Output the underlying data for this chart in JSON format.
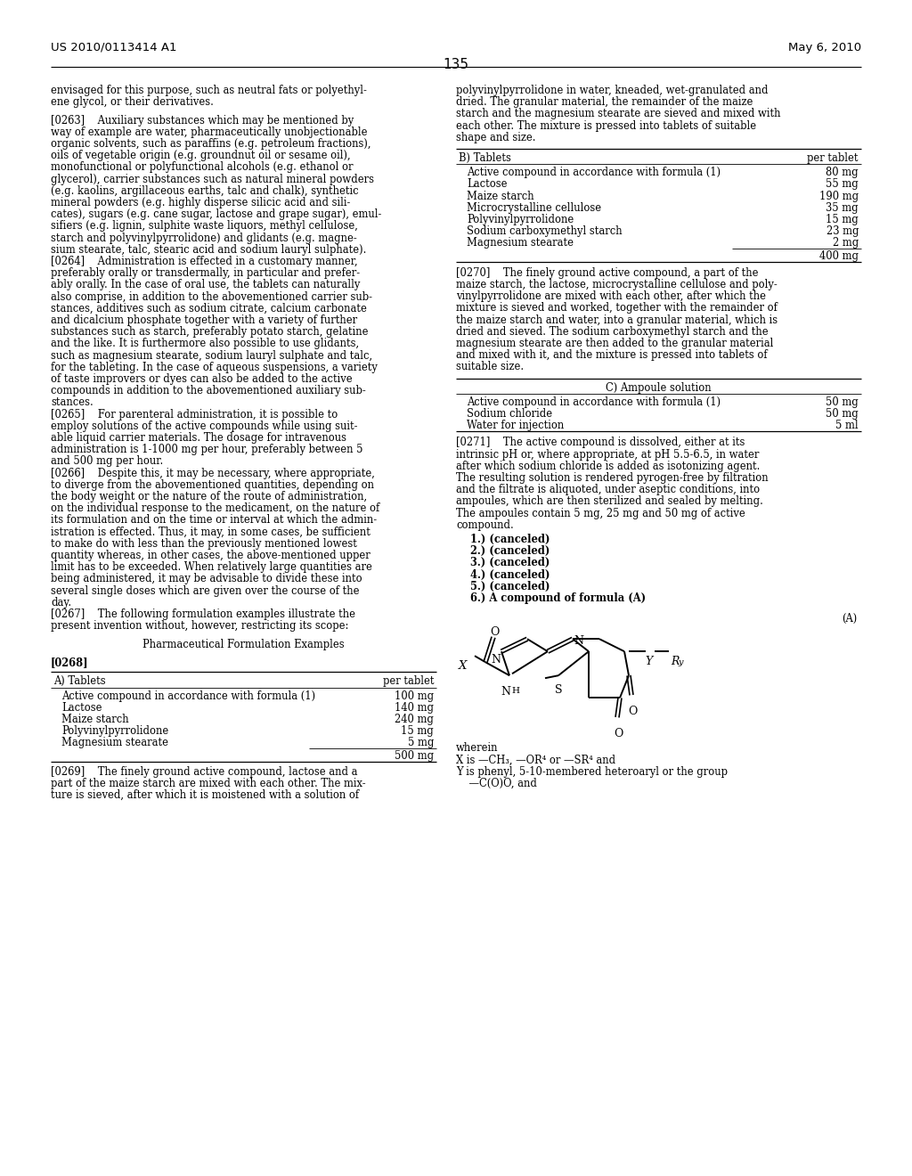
{
  "background_color": "#ffffff",
  "header_left": "US 2010/0113414 A1",
  "header_right": "May 6, 2010",
  "page_number": "135",
  "left_col_lines": [
    "envisaged for this purpose, such as neutral fats or polyethyl-",
    "ene glycol, or their derivatives.",
    "",
    "[0263]    Auxiliary substances which may be mentioned by",
    "way of example are water, pharmaceutically unobjectionable",
    "organic solvents, such as paraffins (e.g. petroleum fractions),",
    "oils of vegetable origin (e.g. groundnut oil or sesame oil),",
    "monofunctional or polyfunctional alcohols (e.g. ethanol or",
    "glycerol), carrier substances such as natural mineral powders",
    "(e.g. kaolins, argillaceous earths, talc and chalk), synthetic",
    "mineral powders (e.g. highly disperse silicic acid and sili-",
    "cates), sugars (e.g. cane sugar, lactose and grape sugar), emul-",
    "sifiers (e.g. lignin, sulphite waste liquors, methyl cellulose,",
    "starch and polyvinylpyrrolidone) and glidants (e.g. magne-",
    "sium stearate, talc, stearic acid and sodium lauryl sulphate).",
    "[0264]    Administration is effected in a customary manner,",
    "preferably orally or transdermally, in particular and prefer-",
    "ably orally. In the case of oral use, the tablets can naturally",
    "also comprise, in addition to the abovementioned carrier sub-",
    "stances, additives such as sodium citrate, calcium carbonate",
    "and dicalcium phosphate together with a variety of further",
    "substances such as starch, preferably potato starch, gelatine",
    "and the like. It is furthermore also possible to use glidants,",
    "such as magnesium stearate, sodium lauryl sulphate and talc,",
    "for the tableting. In the case of aqueous suspensions, a variety",
    "of taste improvers or dyes can also be added to the active",
    "compounds in addition to the abovementioned auxiliary sub-",
    "stances.",
    "[0265]    For parenteral administration, it is possible to",
    "employ solutions of the active compounds while using suit-",
    "able liquid carrier materials. The dosage for intravenous",
    "administration is 1-1000 mg per hour, preferably between 5",
    "and 500 mg per hour.",
    "[0266]    Despite this, it may be necessary, where appropriate,",
    "to diverge from the abovementioned quantities, depending on",
    "the body weight or the nature of the route of administration,",
    "on the individual response to the medicament, on the nature of",
    "its formulation and on the time or interval at which the admin-",
    "istration is effected. Thus, it may, in some cases, be sufficient",
    "to make do with less than the previously mentioned lowest",
    "quantity whereas, in other cases, the above-mentioned upper",
    "limit has to be exceeded. When relatively large quantities are",
    "being administered, it may be advisable to divide these into",
    "several single doses which are given over the course of the",
    "day.",
    "[0267]    The following formulation examples illustrate the",
    "present invention without, however, restricting its scope:",
    "",
    "CENTER:Pharmaceutical Formulation Examples",
    "",
    "[0268]"
  ],
  "table_a_title": "A) Tablets",
  "table_a_col2": "per tablet",
  "table_a_rows": [
    [
      "Active compound in accordance with formula (1)",
      "100 mg"
    ],
    [
      "Lactose",
      "140 mg"
    ],
    [
      "Maize starch",
      "240 mg"
    ],
    [
      "Polyvinylpyrrolidone",
      "15 mg"
    ],
    [
      "Magnesium stearate",
      "5 mg"
    ]
  ],
  "table_a_total": "500 mg",
  "para_0269_lines": [
    "[0269]    The finely ground active compound, lactose and a",
    "part of the maize starch are mixed with each other. The mix-",
    "ture is sieved, after which it is moistened with a solution of"
  ],
  "right_col_top_lines": [
    "polyvinylpyrrolidone in water, kneaded, wet-granulated and",
    "dried. The granular material, the remainder of the maize",
    "starch and the magnesium stearate are sieved and mixed with",
    "each other. The mixture is pressed into tablets of suitable",
    "shape and size."
  ],
  "table_b_title": "B) Tablets",
  "table_b_col2": "per tablet",
  "table_b_rows": [
    [
      "Active compound in accordance with formula (1)",
      "80 mg"
    ],
    [
      "Lactose",
      "55 mg"
    ],
    [
      "Maize starch",
      "190 mg"
    ],
    [
      "Microcrystalline cellulose",
      "35 mg"
    ],
    [
      "Polyvinylpyrrolidone",
      "15 mg"
    ],
    [
      "Sodium carboxymethyl starch",
      "23 mg"
    ],
    [
      "Magnesium stearate",
      "2 mg"
    ]
  ],
  "table_b_total": "400 mg",
  "para_0270_lines": [
    "[0270]    The finely ground active compound, a part of the",
    "maize starch, the lactose, microcrystalline cellulose and poly-",
    "vinylpyrrolidone are mixed with each other, after which the",
    "mixture is sieved and worked, together with the remainder of",
    "the maize starch and water, into a granular material, which is",
    "dried and sieved. The sodium carboxymethyl starch and the",
    "magnesium stearate are then added to the granular material",
    "and mixed with it, and the mixture is pressed into tablets of",
    "suitable size."
  ],
  "table_c_title": "C) Ampoule solution",
  "table_c_rows": [
    [
      "Active compound in accordance with formula (1)",
      "50 mg"
    ],
    [
      "Sodium chloride",
      "50 mg"
    ],
    [
      "Water for injection",
      "5 ml"
    ]
  ],
  "para_0271_lines": [
    "[0271]    The active compound is dissolved, either at its",
    "intrinsic pH or, where appropriate, at pH 5.5-6.5, in water",
    "after which sodium chloride is added as isotonizing agent.",
    "The resulting solution is rendered pyrogen-free by filtration",
    "and the filtrate is aliquoted, under aseptic conditions, into",
    "ampoules, which are then sterilized and sealed by melting.",
    "The ampoules contain 5 mg, 25 mg and 50 mg of active",
    "compound."
  ],
  "claims_lines": [
    "    1.) (canceled)",
    "    2.) (canceled)",
    "    3.) (canceled)",
    "    4.) (canceled)",
    "    5.) (canceled)",
    "    6.) A compound of formula (A)"
  ],
  "formula_label": "(A)",
  "wherein_lines": [
    "wherein",
    "X is —CH₃, —OR⁴ or —SR⁴ and",
    "Y is phenyl, 5-10-membered heteroaryl or the group",
    "    —C(O)O, and"
  ]
}
